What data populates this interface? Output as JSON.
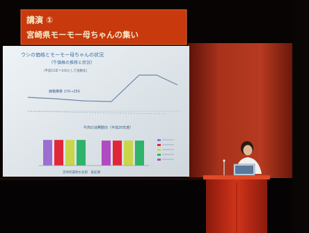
{
  "banner": {
    "line1": "講演 ①",
    "line2": "宮崎県モーモー母ちゃんの集い"
  },
  "slide": {
    "title": "ウシの価格とモーモー母ちゃんの状況",
    "subtitle": "（牛価格の推移と状況）",
    "legend_note": "（平成15年＝100として指数化）",
    "annotation": "価格推移 170→250",
    "bar_chart_title": "牛肉の消費動向（平成20年度）",
    "footer": "宮崎県農政水産部　畜産課"
  },
  "colors": {
    "banner_bg": "#c8390d",
    "banner_text": "#f4e8c8",
    "curtain": "#a8321c",
    "screen": "#dfe6ec",
    "podium": "#c02a16"
  },
  "chart_data": {
    "type": "bar",
    "categories": [
      "",
      "",
      "",
      "",
      "",
      "",
      "",
      ""
    ],
    "series": [
      {
        "values": [
          80,
          80,
          80,
          80,
          78,
          78,
          78,
          78
        ]
      }
    ]
  }
}
